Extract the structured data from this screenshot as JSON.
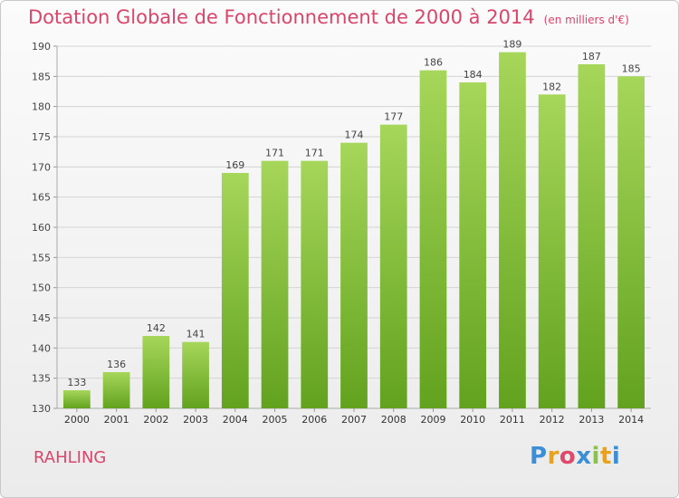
{
  "title": "Dotation Globale de Fonctionnement de 2000 à 2014",
  "unit_label": "(en milliers d'€)",
  "commune": "RAHLING",
  "logo": {
    "letters": [
      "P",
      "r",
      "o",
      "x",
      "i",
      "t",
      "i"
    ],
    "colors": [
      "#3a8fd6",
      "#e8a21c",
      "#e04a6a",
      "#3a8fd6",
      "#8bc34a",
      "#e8a21c",
      "#3a8fd6"
    ]
  },
  "colors": {
    "accent": "#d9456b",
    "bar_light": "#a6d65a",
    "bar_dark": "#62a21e"
  },
  "chart_data": {
    "type": "bar",
    "title": "Dotation Globale de Fonctionnement de 2000 à 2014",
    "xlabel": "",
    "ylabel": "",
    "categories": [
      "2000",
      "2001",
      "2002",
      "2003",
      "2004",
      "2005",
      "2006",
      "2007",
      "2008",
      "2009",
      "2010",
      "2011",
      "2012",
      "2013",
      "2014"
    ],
    "values": [
      133,
      136,
      142,
      141,
      169,
      171,
      171,
      174,
      177,
      186,
      184,
      189,
      182,
      187,
      185
    ],
    "ylim": [
      130,
      190
    ],
    "yticks": [
      130,
      135,
      140,
      145,
      150,
      155,
      160,
      165,
      170,
      175,
      180,
      185,
      190
    ],
    "grid": true
  }
}
